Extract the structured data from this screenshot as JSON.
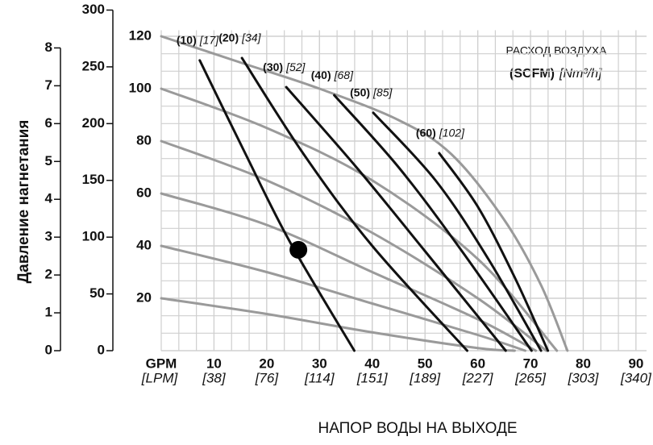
{
  "chart_data": {
    "type": "line",
    "y_axis_label": "Давление нагнетания",
    "x_axis_label": "НАПОР ВОДЫ НА ВЫХОДЕ",
    "air_flow_title": "РАСХОД ВОЗДУХА",
    "air_flow_unit_scfm": "(SCFM)",
    "air_flow_unit_nm3": "[Nm³/h]",
    "x_unit": "GPM",
    "x2_unit": "[LPM]",
    "xlim": [
      0,
      92
    ],
    "xticks": [
      10,
      20,
      30,
      40,
      50,
      60,
      70,
      80,
      90
    ],
    "x2ticks": [
      {
        "value": 10,
        "label": "[38]"
      },
      {
        "value": 20,
        "label": "[76]"
      },
      {
        "value": 30,
        "label": "[114]"
      },
      {
        "value": 40,
        "label": "[151]"
      },
      {
        "value": 50,
        "label": "[189]"
      },
      {
        "value": 60,
        "label": "[227]"
      },
      {
        "value": 70,
        "label": "[265]"
      },
      {
        "value": 80,
        "label": "[303]"
      },
      {
        "value": 90,
        "label": "[340]"
      }
    ],
    "ylim": [
      0,
      130
    ],
    "yticks": [
      20,
      40,
      60,
      80,
      100,
      120
    ],
    "y2lim": [
      0,
      300
    ],
    "y2ticks": [
      0,
      50,
      100,
      150,
      200,
      250,
      300
    ],
    "y3lim": [
      0,
      9
    ],
    "y3ticks": [
      0,
      1,
      2,
      3,
      4,
      5,
      6,
      7,
      8
    ],
    "grid": true,
    "pressure_series": [
      {
        "color": "#9a9a9a",
        "x": [
          0,
          15,
          30,
          45,
          55,
          65,
          72,
          77
        ],
        "values": [
          120,
          110,
          100,
          88,
          75,
          50,
          25,
          0
        ]
      },
      {
        "color": "#9a9a9a",
        "x": [
          0,
          20,
          40,
          60,
          75
        ],
        "values": [
          100,
          85,
          65,
          35,
          0
        ]
      },
      {
        "color": "#9a9a9a",
        "x": [
          0,
          20,
          40,
          60,
          73
        ],
        "values": [
          80,
          65,
          45,
          20,
          0
        ]
      },
      {
        "color": "#9a9a9a",
        "x": [
          0,
          20,
          40,
          60,
          71
        ],
        "values": [
          60,
          48,
          30,
          12,
          0
        ]
      },
      {
        "color": "#9a9a9a",
        "x": [
          0,
          20,
          40,
          60,
          69
        ],
        "values": [
          40,
          30,
          18,
          6,
          0
        ]
      },
      {
        "color": "#9a9a9a",
        "x": [
          0,
          20,
          40,
          60,
          67
        ],
        "values": [
          20,
          14,
          7,
          1,
          0
        ]
      }
    ],
    "series": [
      {
        "name": "(10)",
        "name_nm3": "[17]",
        "color": "#111111",
        "x": [
          7.3,
          16,
          24.4,
          36.6
        ],
        "values": [
          110.8,
          75,
          41.5,
          0
        ]
      },
      {
        "name": "(20)",
        "name_nm3": "[34]",
        "color": "#111111",
        "x": [
          15.3,
          27,
          40,
          58
        ],
        "values": [
          111.7,
          75,
          40,
          0
        ]
      },
      {
        "name": "(30)",
        "name_nm3": "[52]",
        "color": "#111111",
        "x": [
          23.7,
          37,
          50,
          65.3
        ],
        "values": [
          100.6,
          70,
          38,
          0
        ]
      },
      {
        "name": "(40)",
        "name_nm3": "[68]",
        "color": "#111111",
        "x": [
          32.8,
          45,
          57,
          70.2
        ],
        "values": [
          97.5,
          70,
          38,
          0
        ]
      },
      {
        "name": "(50)",
        "name_nm3": "[85]",
        "color": "#111111",
        "x": [
          40.2,
          52,
          62,
          72
        ],
        "values": [
          90.8,
          65,
          35,
          0
        ]
      },
      {
        "name": "(60)",
        "name_nm3": "[102]",
        "color": "#111111",
        "x": [
          52.7,
          60,
          67,
          73.3
        ],
        "values": [
          75.4,
          55,
          28,
          0
        ]
      }
    ],
    "point": {
      "x": 26,
      "y": 38.5,
      "color": "#000000"
    }
  }
}
